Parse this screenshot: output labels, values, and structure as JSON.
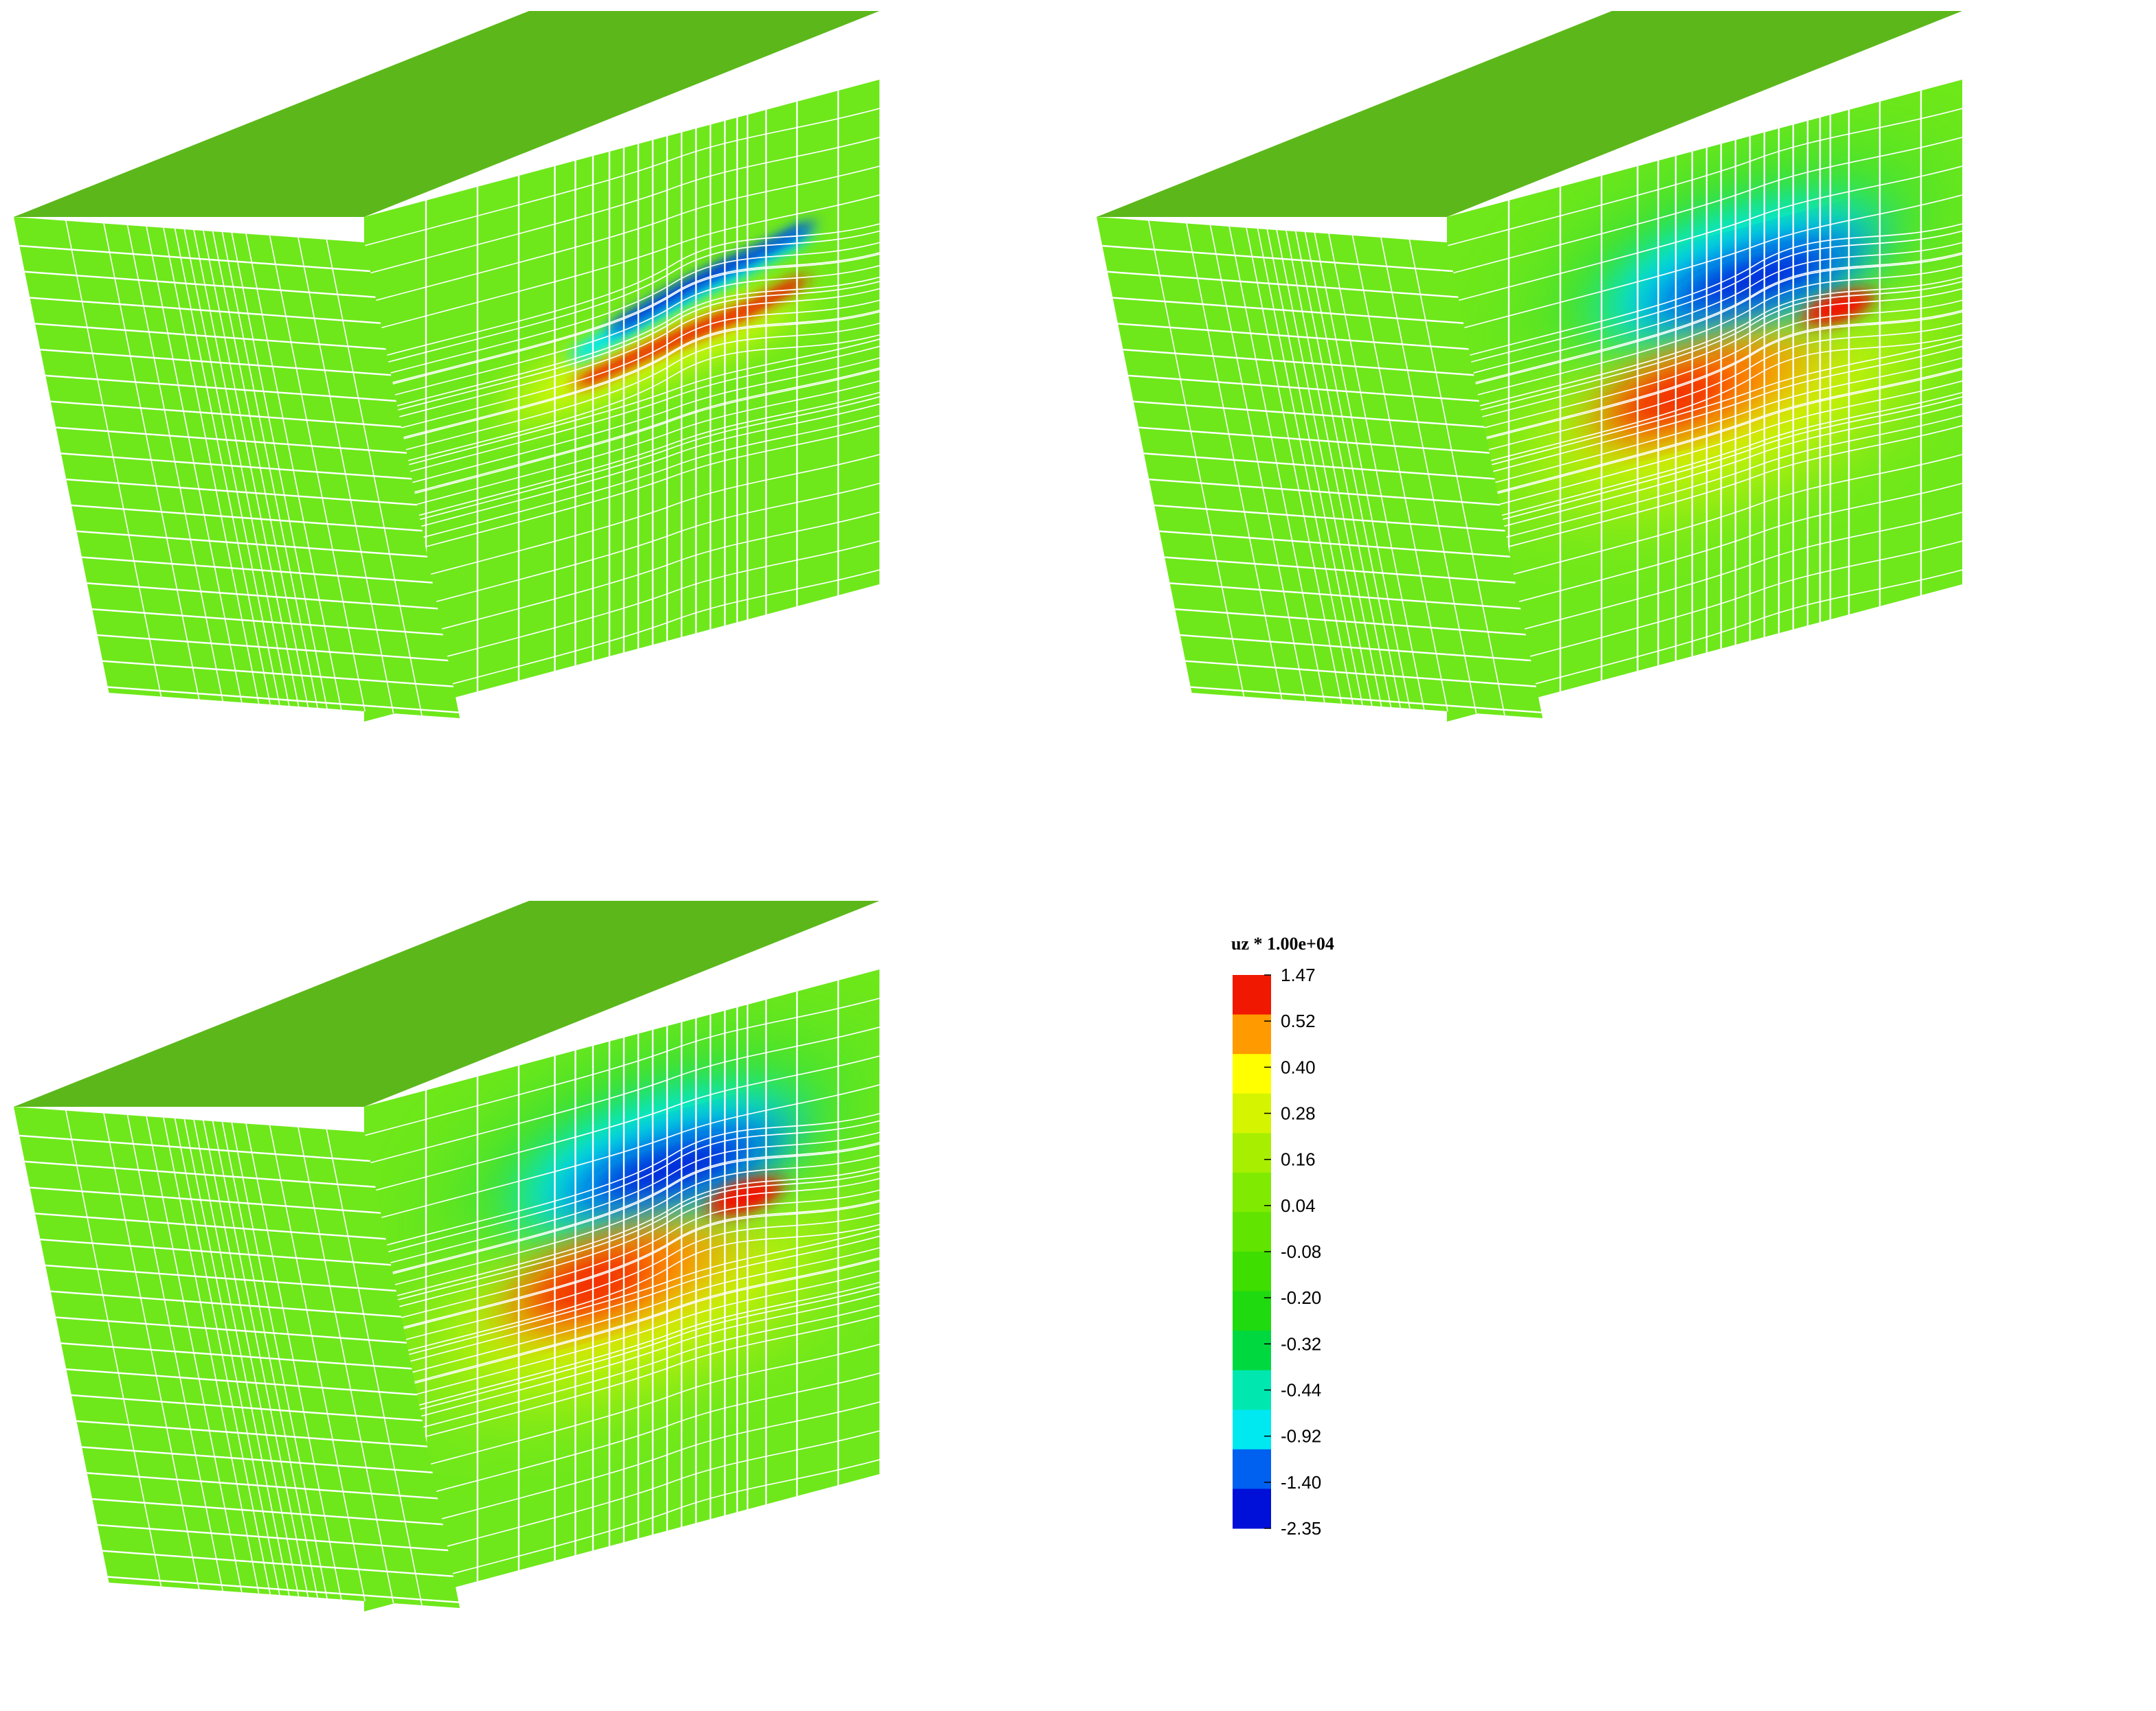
{
  "legend": {
    "title": "uz * 1.00e+04",
    "ticks": [
      "1.47",
      "0.52",
      "0.40",
      "0.28",
      "0.16",
      "0.04",
      "-0.08",
      "-0.20",
      "-0.32",
      "-0.44",
      "-0.92",
      "-1.40",
      "-2.35"
    ],
    "colors": [
      "#f01800",
      "#ff9a00",
      "#ffff00",
      "#d4f400",
      "#a8ee00",
      "#80ea00",
      "#60e400",
      "#3ede00",
      "#20da10",
      "#00d840",
      "#00e8b0",
      "#00e8f0",
      "#0060f0",
      "#0010d8"
    ]
  },
  "panels": [
    {
      "name": "panel-top-left",
      "stage": "narrow"
    },
    {
      "name": "panel-top-right",
      "stage": "diffuse"
    },
    {
      "name": "panel-bottom-left",
      "stage": "diffuse"
    }
  ],
  "colors": {
    "base": "#6ee81a",
    "top_face": "#5cb81a",
    "side_face": "#68dc1a",
    "mesh": "#ffffff"
  }
}
